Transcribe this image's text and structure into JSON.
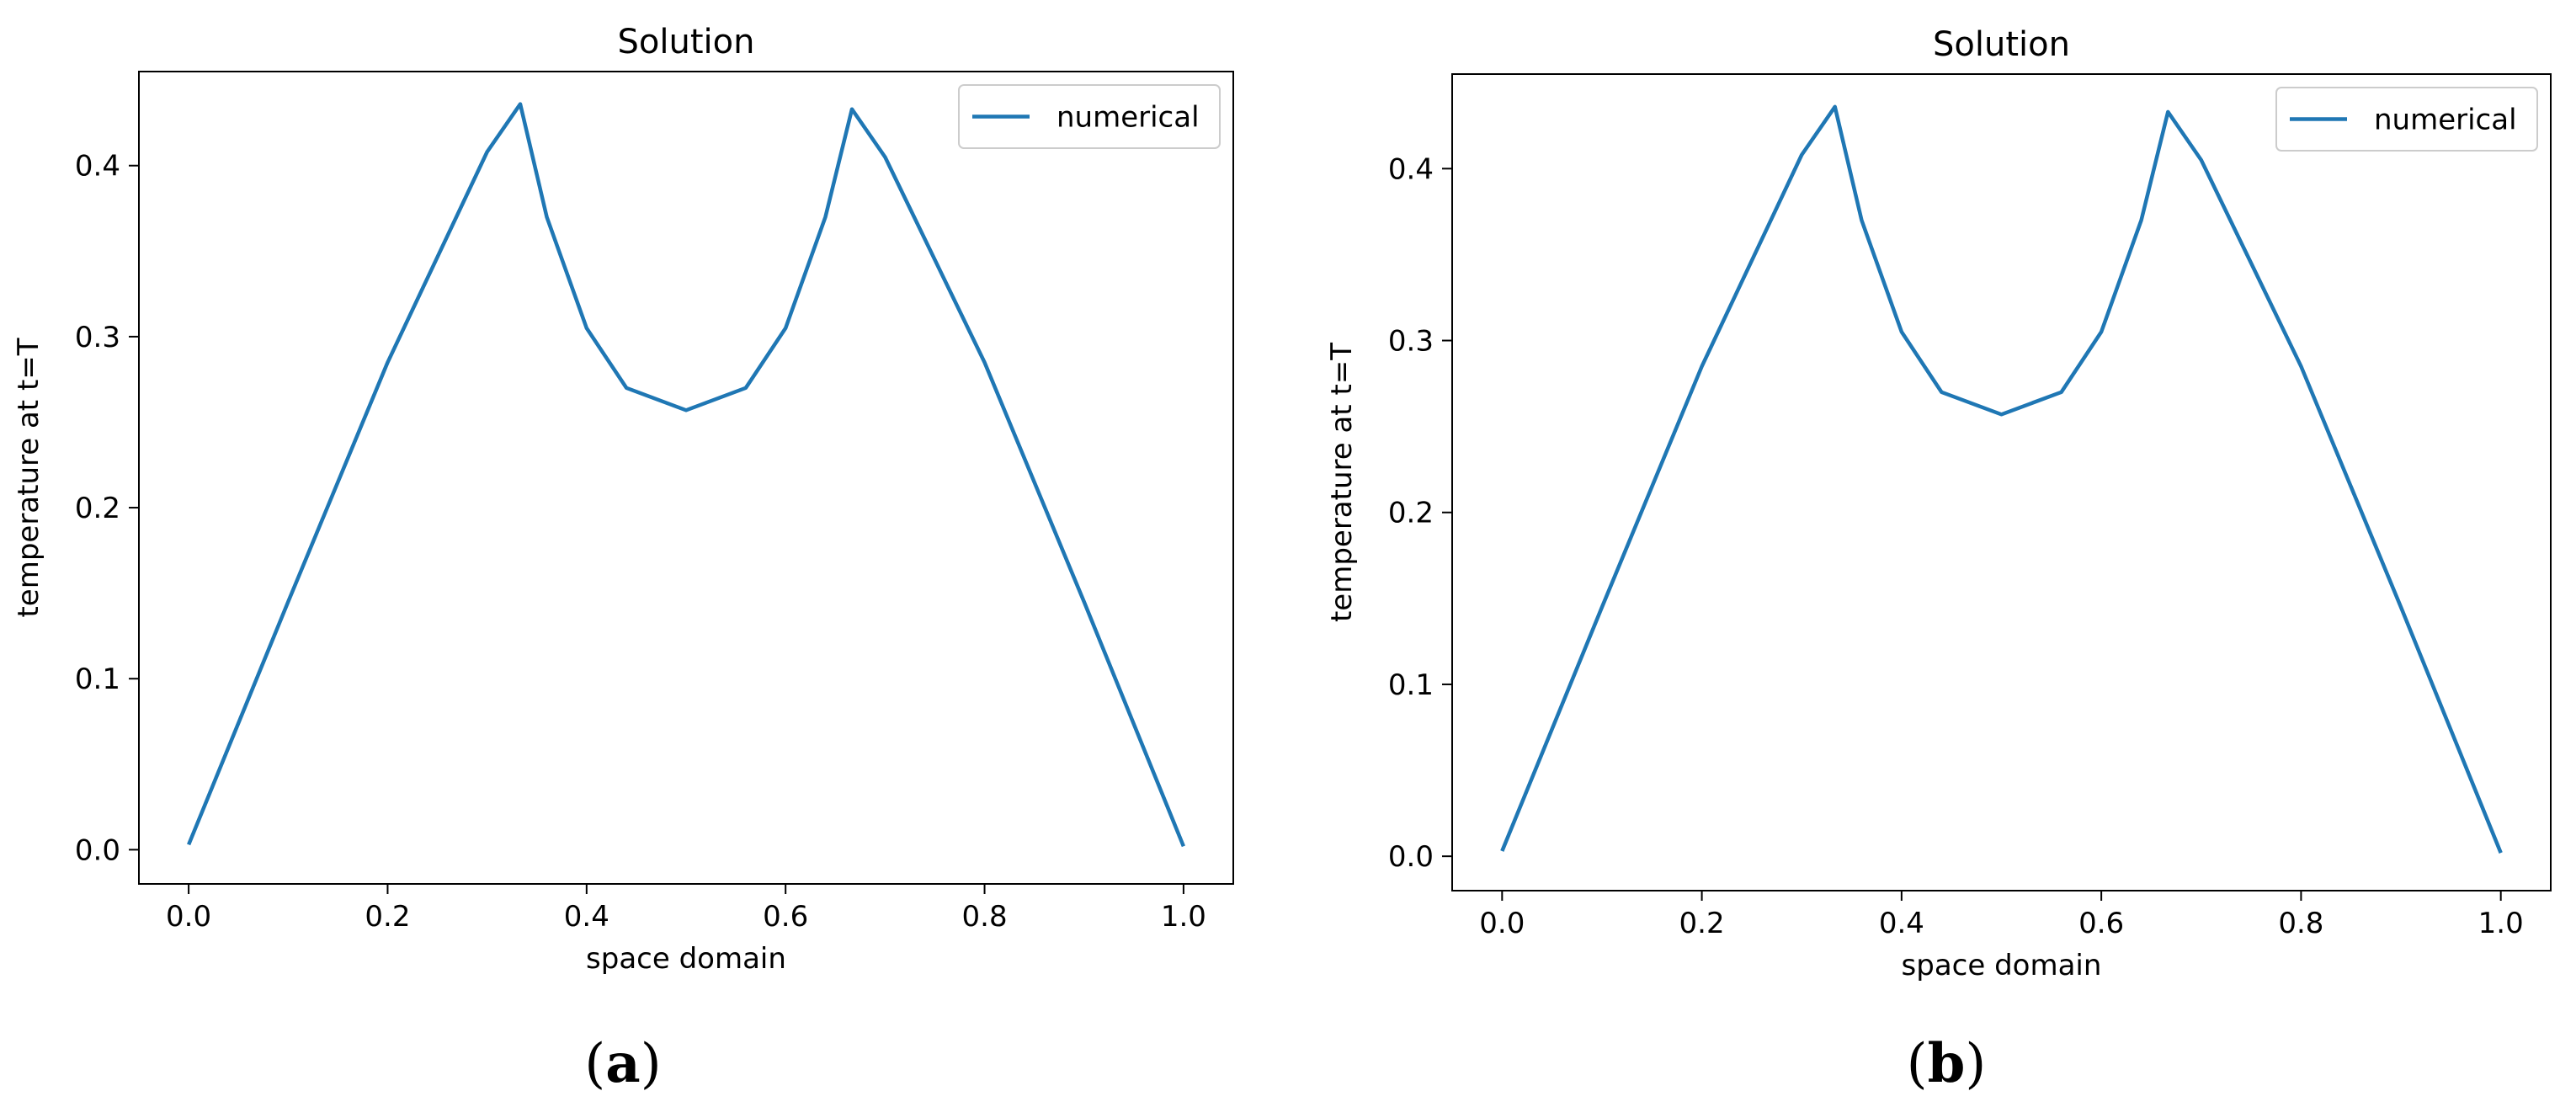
{
  "chart_data": [
    {
      "panel_label": "a",
      "type": "line",
      "title": "Solution",
      "xlabel": "space domain",
      "ylabel": "temperature at t=T",
      "xlim": [
        -0.05,
        1.05
      ],
      "ylim": [
        -0.02,
        0.455
      ],
      "xticks": [
        0.0,
        0.2,
        0.4,
        0.6,
        0.8,
        1.0
      ],
      "xtick_labels": [
        "0.0",
        "0.2",
        "0.4",
        "0.6",
        "0.8",
        "1.0"
      ],
      "yticks": [
        0.0,
        0.1,
        0.2,
        0.3,
        0.4
      ],
      "ytick_labels": [
        "0.0",
        "0.1",
        "0.2",
        "0.3",
        "0.4"
      ],
      "grid": false,
      "legend_position": "top-right",
      "series": [
        {
          "name": "numerical",
          "color": "#1f77b4",
          "x": [
            0.0,
            0.1,
            0.2,
            0.3,
            0.3333,
            0.36,
            0.4,
            0.44,
            0.5,
            0.56,
            0.6,
            0.64,
            0.6667,
            0.7,
            0.8,
            0.9,
            1.0
          ],
          "y": [
            0.003,
            0.145,
            0.285,
            0.408,
            0.436,
            0.37,
            0.305,
            0.27,
            0.257,
            0.27,
            0.305,
            0.37,
            0.433,
            0.405,
            0.285,
            0.145,
            0.002
          ]
        }
      ]
    },
    {
      "panel_label": "b",
      "type": "line",
      "title": "Solution",
      "xlabel": "space domain",
      "ylabel": "temperature at t=T",
      "xlim": [
        -0.05,
        1.05
      ],
      "ylim": [
        -0.02,
        0.455
      ],
      "xticks": [
        0.0,
        0.2,
        0.4,
        0.6,
        0.8,
        1.0
      ],
      "xtick_labels": [
        "0.0",
        "0.2",
        "0.4",
        "0.6",
        "0.8",
        "1.0"
      ],
      "yticks": [
        0.0,
        0.1,
        0.2,
        0.3,
        0.4
      ],
      "ytick_labels": [
        "0.0",
        "0.1",
        "0.2",
        "0.3",
        "0.4"
      ],
      "grid": false,
      "legend_position": "top-right",
      "series": [
        {
          "name": "numerical",
          "color": "#1f77b4",
          "x": [
            0.0,
            0.1,
            0.2,
            0.3,
            0.3333,
            0.36,
            0.4,
            0.44,
            0.5,
            0.56,
            0.6,
            0.64,
            0.6667,
            0.7,
            0.8,
            0.9,
            1.0
          ],
          "y": [
            0.003,
            0.145,
            0.285,
            0.408,
            0.436,
            0.37,
            0.305,
            0.27,
            0.257,
            0.27,
            0.305,
            0.37,
            0.433,
            0.405,
            0.285,
            0.145,
            0.002
          ]
        }
      ]
    }
  ]
}
